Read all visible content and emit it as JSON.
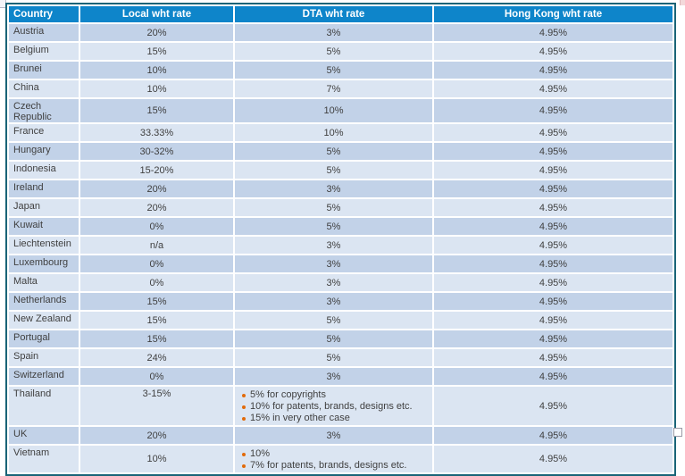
{
  "colors": {
    "header_bg": "#0e85ca",
    "header_text": "#ffffff",
    "row_dark": "#c2d2e8",
    "row_light": "#dbe5f2",
    "border": "#1a6478",
    "text": "#3f3f3f",
    "bullet": "#e26b0a"
  },
  "table": {
    "columns": [
      "Country",
      "Local wht rate",
      "DTA wht rate",
      "Hong Kong wht rate"
    ],
    "rows": [
      {
        "country": "Austria",
        "local": "20%",
        "dta": "3%",
        "hk": "4.95%"
      },
      {
        "country": "Belgium",
        "local": "15%",
        "dta": "5%",
        "hk": "4.95%"
      },
      {
        "country": "Brunei",
        "local": "10%",
        "dta": "5%",
        "hk": "4.95%"
      },
      {
        "country": "China",
        "local": "10%",
        "dta": "7%",
        "hk": "4.95%"
      },
      {
        "country": "Czech Republic",
        "local": "15%",
        "dta": "10%",
        "hk": "4.95%"
      },
      {
        "country": "France",
        "local": "33.33%",
        "dta": "10%",
        "hk": "4.95%"
      },
      {
        "country": "Hungary",
        "local": "30-32%",
        "dta": "5%",
        "hk": "4.95%"
      },
      {
        "country": "Indonesia",
        "local": "15-20%",
        "dta": "5%",
        "hk": "4.95%"
      },
      {
        "country": "Ireland",
        "local": "20%",
        "dta": "3%",
        "hk": "4.95%"
      },
      {
        "country": "Japan",
        "local": "20%",
        "dta": "5%",
        "hk": "4.95%"
      },
      {
        "country": "Kuwait",
        "local": "0%",
        "dta": "5%",
        "hk": "4.95%"
      },
      {
        "country": "Liechtenstein",
        "local": "n/a",
        "dta": "3%",
        "hk": "4.95%"
      },
      {
        "country": "Luxembourg",
        "local": "0%",
        "dta": "3%",
        "hk": "4.95%"
      },
      {
        "country": "Malta",
        "local": "0%",
        "dta": "3%",
        "hk": "4.95%"
      },
      {
        "country": "Netherlands",
        "local": "15%",
        "dta": "3%",
        "hk": "4.95%"
      },
      {
        "country": "New Zealand",
        "local": "15%",
        "dta": "5%",
        "hk": "4.95%"
      },
      {
        "country": "Portugal",
        "local": "15%",
        "dta": "5%",
        "hk": "4.95%"
      },
      {
        "country": "Spain",
        "local": "24%",
        "dta": "5%",
        "hk": "4.95%"
      },
      {
        "country": "Switzerland",
        "local": "0%",
        "dta": "3%",
        "hk": "4.95%"
      },
      {
        "country": "Thailand",
        "local": "3-15%",
        "local_top": true,
        "dta_bullets": [
          "5% for copyrights",
          "10% for patents, brands, designs etc.",
          "15% in very other case"
        ],
        "hk": "4.95%"
      },
      {
        "country": "UK",
        "local": "20%",
        "dta": "3%",
        "hk": "4.95%"
      },
      {
        "country": "Vietnam",
        "local": "10%",
        "dta_bullets": [
          "10%",
          "7% for patents, brands, designs etc."
        ],
        "hk": "4.95%"
      }
    ]
  }
}
